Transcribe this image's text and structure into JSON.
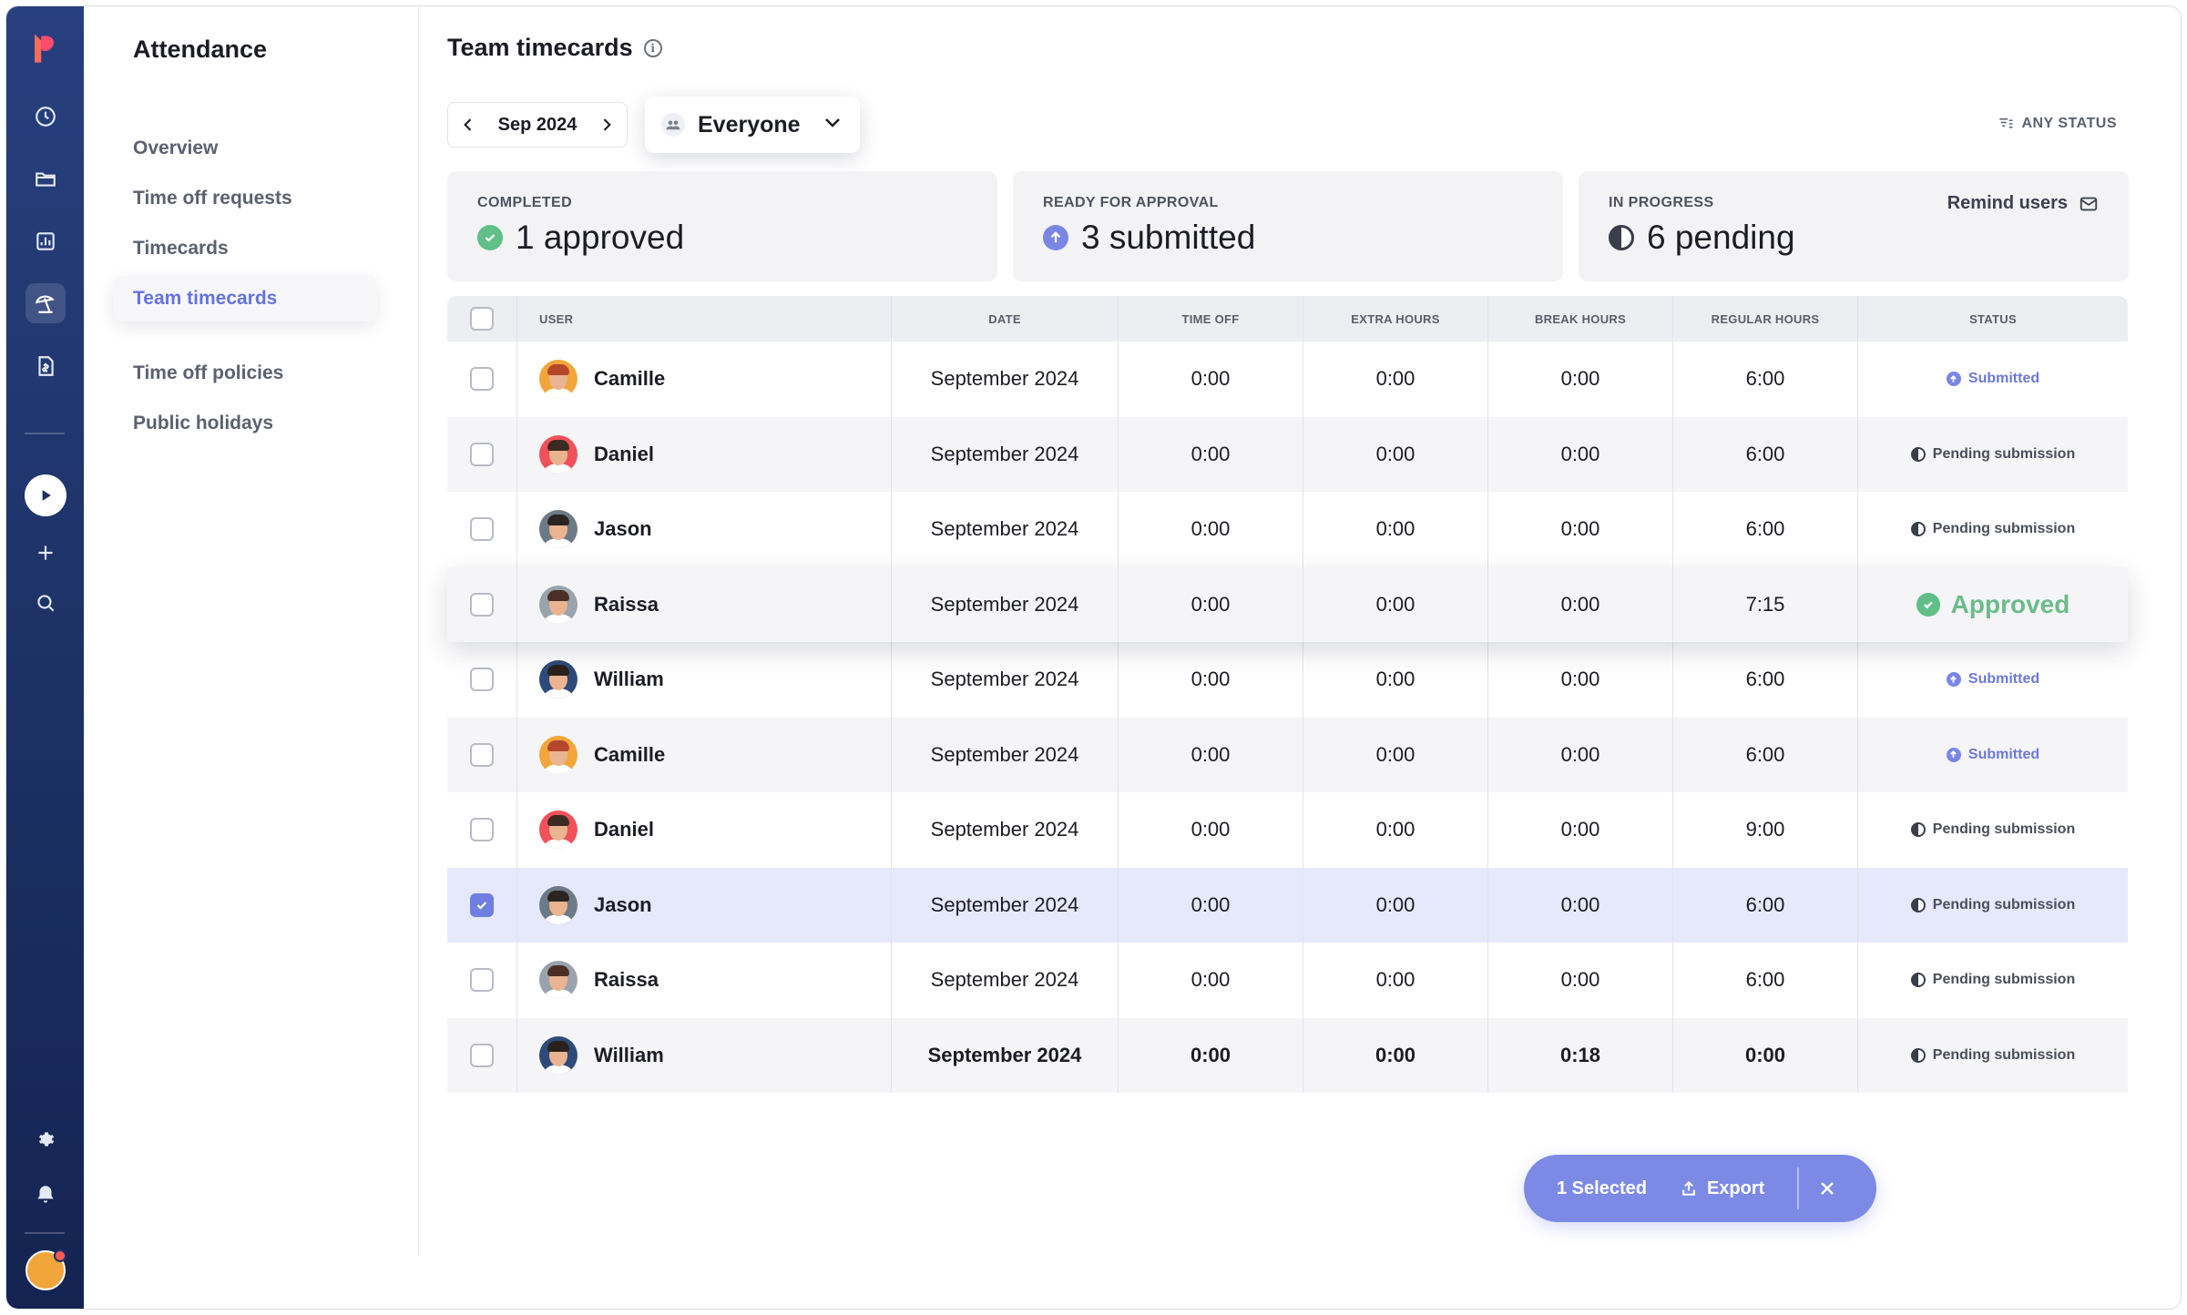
{
  "app": {
    "section_title": "Attendance",
    "page_title": "Team timecards"
  },
  "rail": {
    "icons": [
      "logo-icon",
      "clock-icon",
      "folder-icon",
      "chart-icon",
      "beach-umbrella-icon",
      "invoice-icon",
      "play-icon",
      "plus-icon",
      "search-icon",
      "gear-icon",
      "bell-icon",
      "user-avatar"
    ],
    "active": "beach-umbrella-icon"
  },
  "subnav": {
    "items": [
      {
        "label": "Overview"
      },
      {
        "label": "Time off requests"
      },
      {
        "label": "Timecards"
      },
      {
        "label": "Team timecards"
      },
      {
        "label": "Time off policies"
      },
      {
        "label": "Public holidays"
      }
    ],
    "active_index": 3
  },
  "toolbar": {
    "month": "Sep 2024",
    "people_filter": "Everyone",
    "status_filter": "ANY STATUS"
  },
  "stats": {
    "completed": {
      "label": "COMPLETED",
      "value": "1 approved",
      "color": "#5fbf87"
    },
    "ready": {
      "label": "READY FOR APPROVAL",
      "value": "3 submitted",
      "color": "#7a86e3"
    },
    "progress": {
      "label": "IN PROGRESS",
      "value": "6 pending",
      "action": "Remind users"
    }
  },
  "table": {
    "headers": {
      "user": "USER",
      "date": "DATE",
      "time_off": "TIME OFF",
      "extra_hours": "EXTRA HOURS",
      "break_hours": "BREAK HOURS",
      "regular_hours": "REGULAR HOURS",
      "status": "STATUS"
    },
    "rows": [
      {
        "name": "Camille",
        "date": "September 2024",
        "time_off": "0:00",
        "extra": "0:00",
        "break": "0:00",
        "regular": "6:00",
        "status": "Submitted",
        "status_type": "submitted",
        "avatar_color": "#f2a53a",
        "hair": "#b4462b",
        "checked": false
      },
      {
        "name": "Daniel",
        "date": "September 2024",
        "time_off": "0:00",
        "extra": "0:00",
        "break": "0:00",
        "regular": "6:00",
        "status": "Pending submission",
        "status_type": "pending",
        "avatar_color": "#f0515a",
        "hair": "#3b2a22",
        "checked": false
      },
      {
        "name": "Jason",
        "date": "September 2024",
        "time_off": "0:00",
        "extra": "0:00",
        "break": "0:00",
        "regular": "6:00",
        "status": "Pending submission",
        "status_type": "pending",
        "avatar_color": "#6b7a86",
        "hair": "#2b2420",
        "checked": false
      },
      {
        "name": "Raissa",
        "date": "September 2024",
        "time_off": "0:00",
        "extra": "0:00",
        "break": "0:00",
        "regular": "7:15",
        "status": "Approved",
        "status_type": "approved",
        "avatar_color": "#9aa3ad",
        "hair": "#4a3024",
        "checked": false
      },
      {
        "name": "William",
        "date": "September 2024",
        "time_off": "0:00",
        "extra": "0:00",
        "break": "0:00",
        "regular": "6:00",
        "status": "Submitted",
        "status_type": "submitted",
        "avatar_color": "#2e4a7a",
        "hair": "#2a211c",
        "checked": false
      },
      {
        "name": "Camille",
        "date": "September 2024",
        "time_off": "0:00",
        "extra": "0:00",
        "break": "0:00",
        "regular": "6:00",
        "status": "Submitted",
        "status_type": "submitted",
        "avatar_color": "#f2a53a",
        "hair": "#b4462b",
        "checked": false
      },
      {
        "name": "Daniel",
        "date": "September 2024",
        "time_off": "0:00",
        "extra": "0:00",
        "break": "0:00",
        "regular": "9:00",
        "status": "Pending submission",
        "status_type": "pending",
        "avatar_color": "#f0515a",
        "hair": "#3b2a22",
        "checked": false
      },
      {
        "name": "Jason",
        "date": "September 2024",
        "time_off": "0:00",
        "extra": "0:00",
        "break": "0:00",
        "regular": "6:00",
        "status": "Pending submission",
        "status_type": "pending",
        "avatar_color": "#6b7a86",
        "hair": "#2b2420",
        "checked": true
      },
      {
        "name": "Raissa",
        "date": "September 2024",
        "time_off": "0:00",
        "extra": "0:00",
        "break": "0:00",
        "regular": "6:00",
        "status": "Pending submission",
        "status_type": "pending",
        "avatar_color": "#9aa3ad",
        "hair": "#4a3024",
        "checked": false
      },
      {
        "name": "William",
        "date": "September 2024",
        "time_off": "0:00",
        "extra": "0:00",
        "break": "0:18",
        "regular": "0:00",
        "status": "Pending submission",
        "status_type": "pending",
        "avatar_color": "#2e4a7a",
        "hair": "#2a211c",
        "checked": false
      }
    ]
  },
  "actionbar": {
    "selected_label": "1 Selected",
    "export_label": "Export"
  },
  "colors": {
    "accent": "#6f7fe0",
    "approved": "#6cbb8a",
    "rail": "#1c3064"
  }
}
